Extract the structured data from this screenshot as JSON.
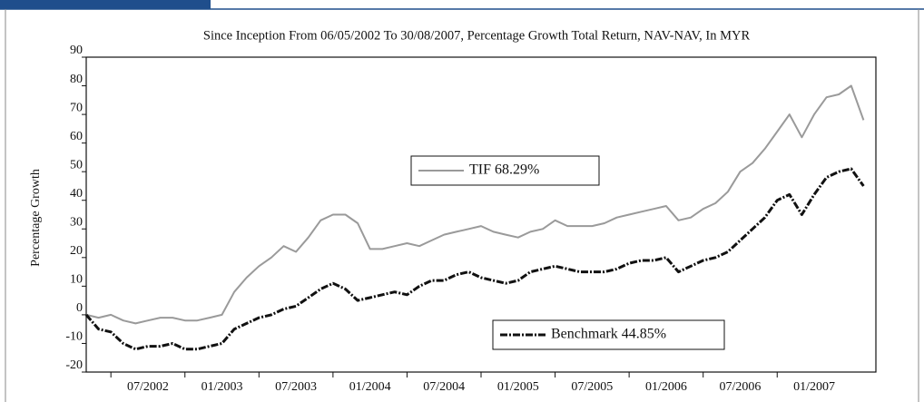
{
  "chart_data": {
    "type": "line",
    "title": "Since Inception From 06/05/2002 To 30/08/2007, Percentage Growth Total Return, NAV-NAV, In MYR",
    "y_label": "Percentage Growth",
    "x": [
      "05/2002",
      "06/2002",
      "07/2002",
      "08/2002",
      "09/2002",
      "10/2002",
      "11/2002",
      "12/2002",
      "01/2003",
      "02/2003",
      "03/2003",
      "04/2003",
      "05/2003",
      "06/2003",
      "07/2003",
      "08/2003",
      "09/2003",
      "10/2003",
      "11/2003",
      "12/2003",
      "01/2004",
      "02/2004",
      "03/2004",
      "04/2004",
      "05/2004",
      "06/2004",
      "07/2004",
      "08/2004",
      "09/2004",
      "10/2004",
      "11/2004",
      "12/2004",
      "01/2005",
      "02/2005",
      "03/2005",
      "04/2005",
      "05/2005",
      "06/2005",
      "07/2005",
      "08/2005",
      "09/2005",
      "10/2005",
      "11/2005",
      "12/2005",
      "01/2006",
      "02/2006",
      "03/2006",
      "04/2006",
      "05/2006",
      "06/2006",
      "07/2006",
      "08/2006",
      "09/2006",
      "10/2006",
      "11/2006",
      "12/2006",
      "01/2007",
      "02/2007",
      "03/2007",
      "04/2007",
      "05/2007",
      "06/2007",
      "07/2007",
      "08/2007"
    ],
    "series": [
      {
        "name": "TIF 68.29%",
        "color": "#9a9a9a",
        "values": [
          0,
          -1,
          0,
          -2,
          -3,
          -2,
          -1,
          -1,
          -2,
          -2,
          -1,
          0,
          8,
          13,
          17,
          20,
          24,
          22,
          27,
          33,
          35,
          35,
          32,
          23,
          23,
          24,
          25,
          24,
          26,
          28,
          29,
          30,
          31,
          29,
          28,
          27,
          29,
          30,
          33,
          31,
          31,
          31,
          32,
          34,
          35,
          36,
          37,
          38,
          33,
          34,
          37,
          39,
          43,
          50,
          53,
          58,
          64,
          70,
          62,
          70,
          76,
          77,
          80,
          68
        ]
      },
      {
        "name": "Benchmark 44.85%",
        "color": "#111111",
        "values": [
          0,
          -5,
          -6,
          -10,
          -12,
          -11,
          -11,
          -10,
          -12,
          -12,
          -11,
          -10,
          -5,
          -3,
          -1,
          0,
          2,
          3,
          6,
          9,
          11,
          9,
          5,
          6,
          7,
          8,
          7,
          10,
          12,
          12,
          14,
          15,
          13,
          12,
          11,
          12,
          15,
          16,
          17,
          16,
          15,
          15,
          15,
          16,
          18,
          19,
          19,
          20,
          15,
          17,
          19,
          20,
          22,
          26,
          30,
          34,
          40,
          42,
          35,
          42,
          48,
          50,
          51,
          45
        ]
      }
    ],
    "xlim": [
      "05/2002",
      "09/2007"
    ],
    "xticks": [
      "07/2002",
      "01/2003",
      "07/2003",
      "01/2004",
      "07/2004",
      "01/2005",
      "07/2005",
      "01/2006",
      "07/2006",
      "01/2007"
    ],
    "ylim": [
      -20,
      90
    ],
    "yticks": [
      -20,
      -10,
      0,
      10,
      20,
      30,
      40,
      50,
      60,
      70,
      80,
      90
    ]
  }
}
